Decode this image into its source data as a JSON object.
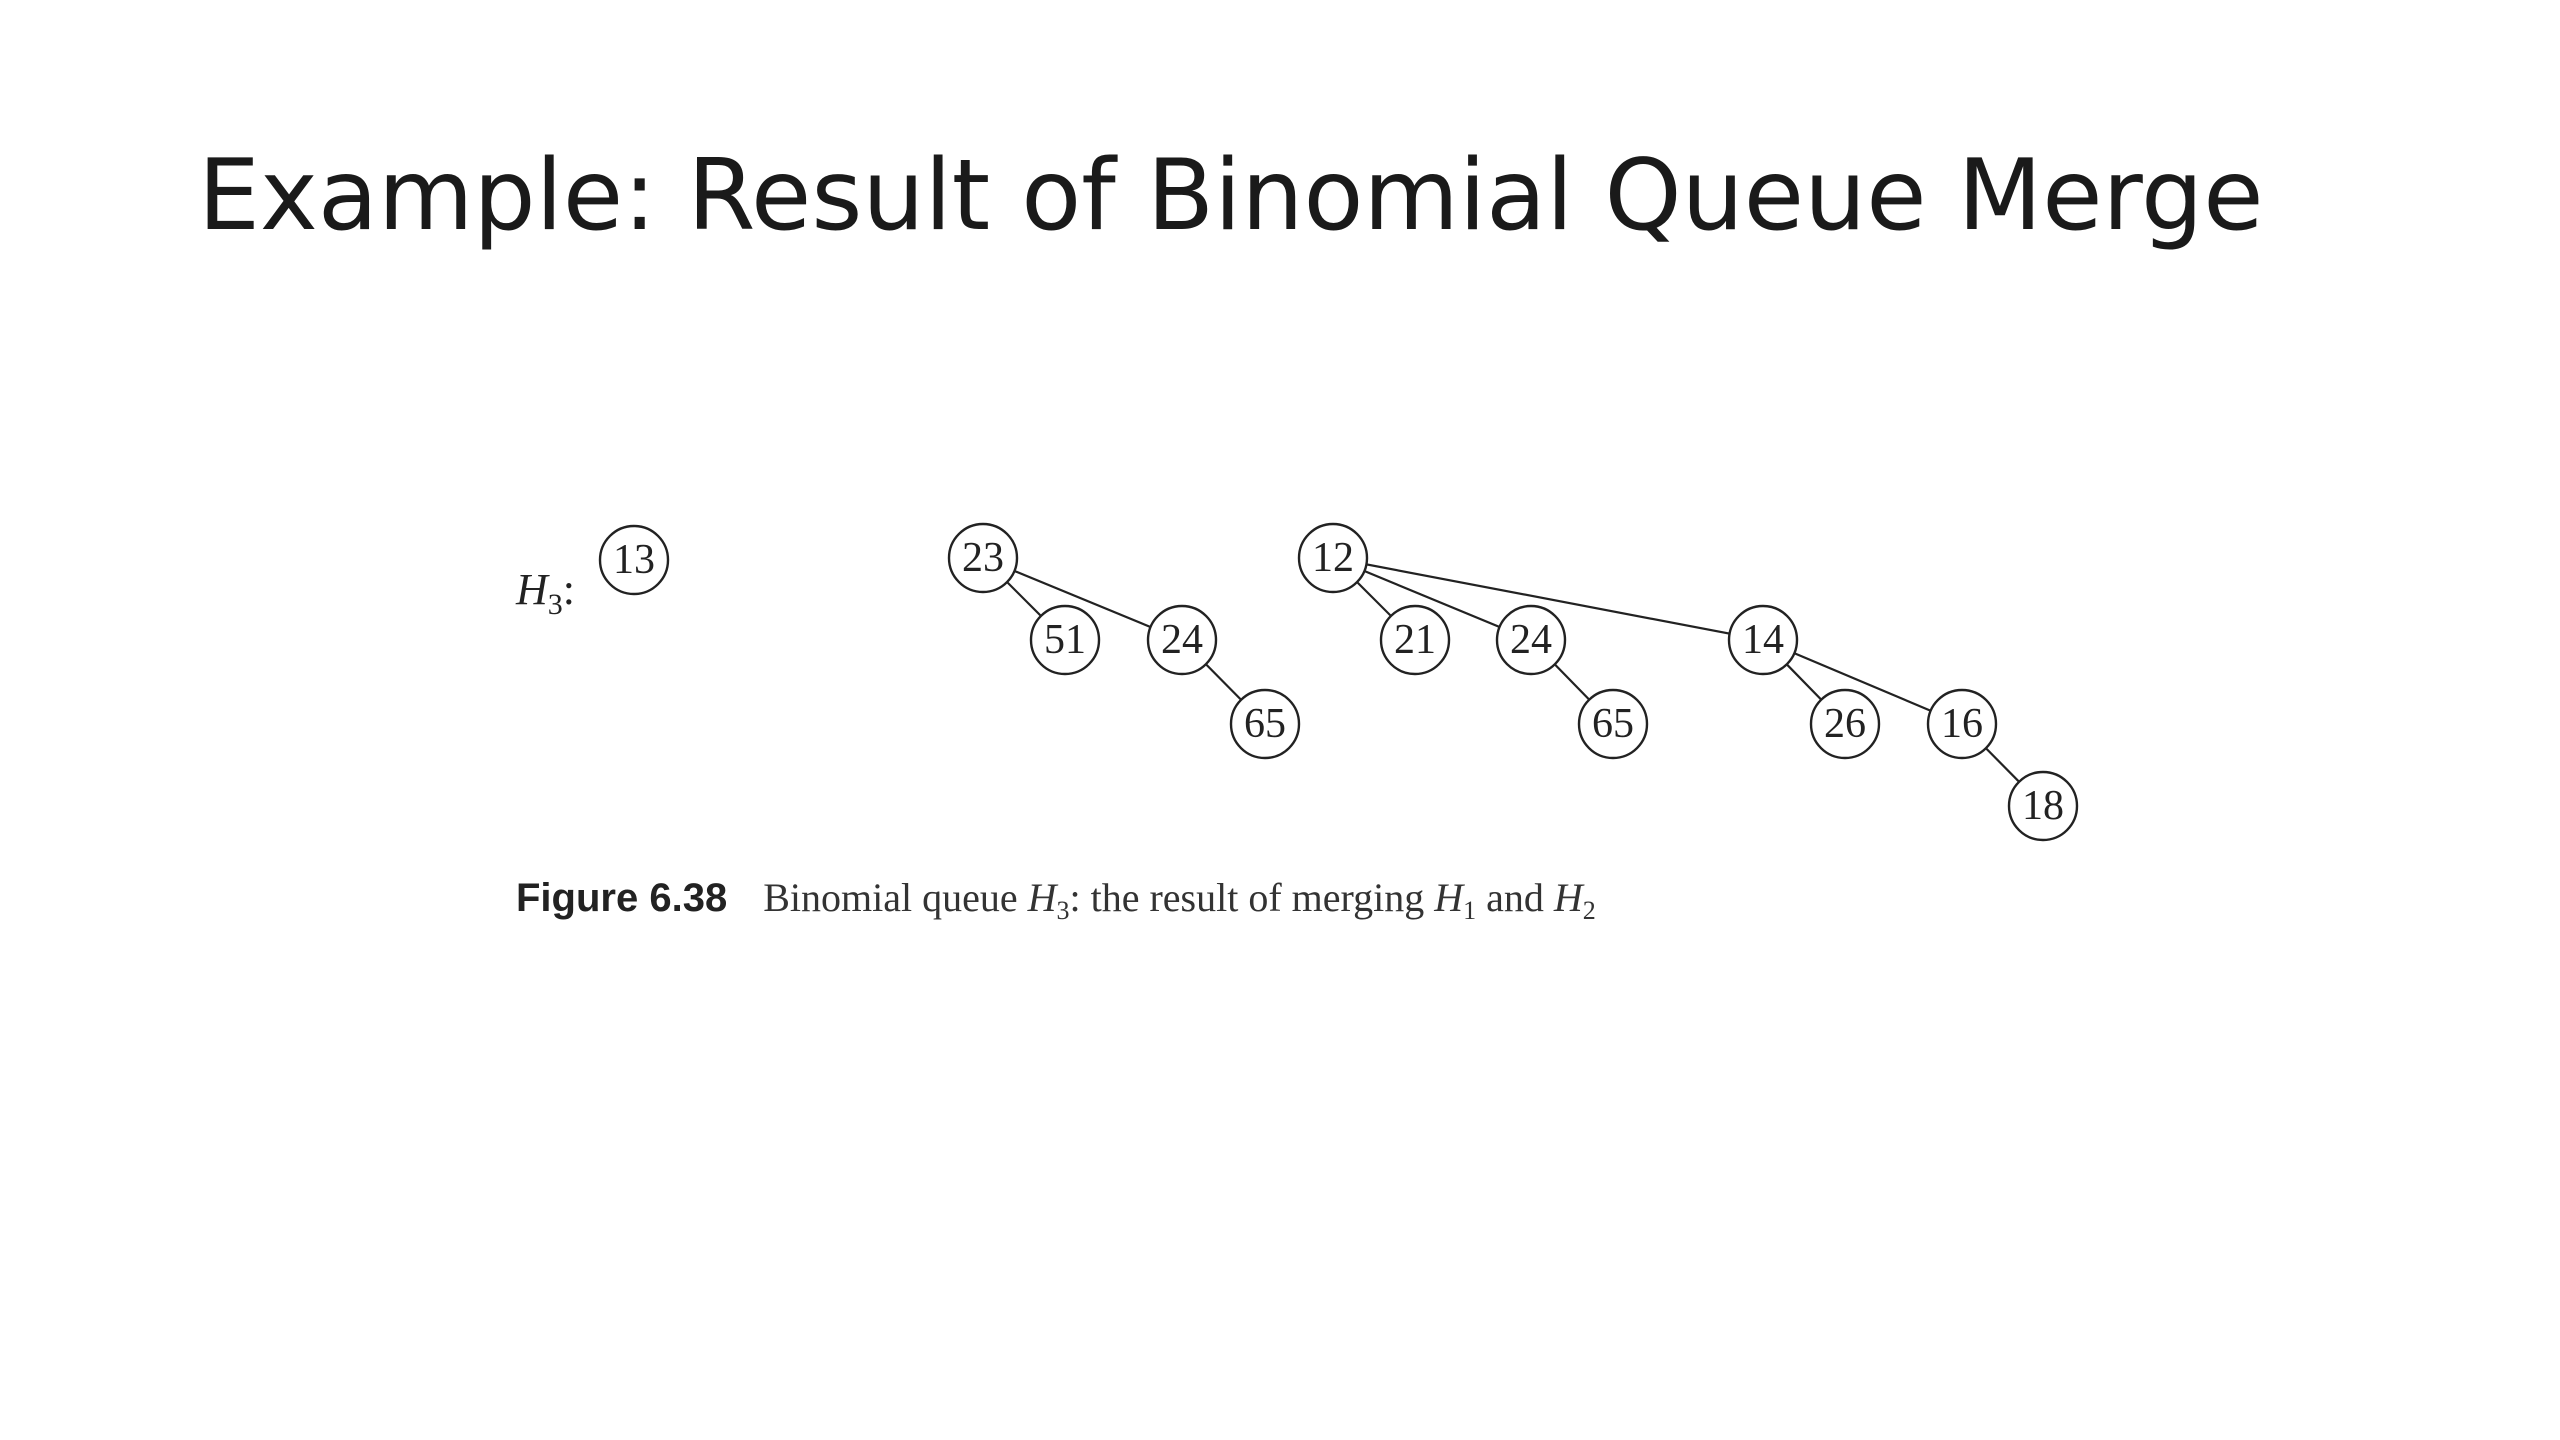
{
  "slide": {
    "title": "Example: Result of Binomial Queue Merge"
  },
  "figure": {
    "heap_label": {
      "name": "H",
      "subscript": "3",
      "suffix": ":"
    },
    "trees": [
      {
        "root": "13",
        "nodes": [
          "13"
        ],
        "edges": []
      },
      {
        "root": "23",
        "nodes": [
          "23",
          "51",
          "24",
          "65"
        ],
        "edges": [
          [
            "23",
            "51"
          ],
          [
            "23",
            "24"
          ],
          [
            "24",
            "65"
          ]
        ]
      },
      {
        "root": "12",
        "nodes": [
          "12",
          "21",
          "24",
          "65",
          "14",
          "26",
          "16",
          "18"
        ],
        "edges": [
          [
            "12",
            "21"
          ],
          [
            "12",
            "24"
          ],
          [
            "12",
            "14"
          ],
          [
            "24",
            "65"
          ],
          [
            "14",
            "26"
          ],
          [
            "14",
            "16"
          ],
          [
            "16",
            "18"
          ]
        ]
      }
    ],
    "caption": {
      "number": "Figure 6.38",
      "text_before": "Binomial queue ",
      "h3_name": "H",
      "h3_sub": "3",
      "text_middle": ": the result of merging ",
      "h1_name": "H",
      "h1_sub": "1",
      "text_and": " and ",
      "h2_name": "H",
      "h2_sub": "2"
    }
  }
}
